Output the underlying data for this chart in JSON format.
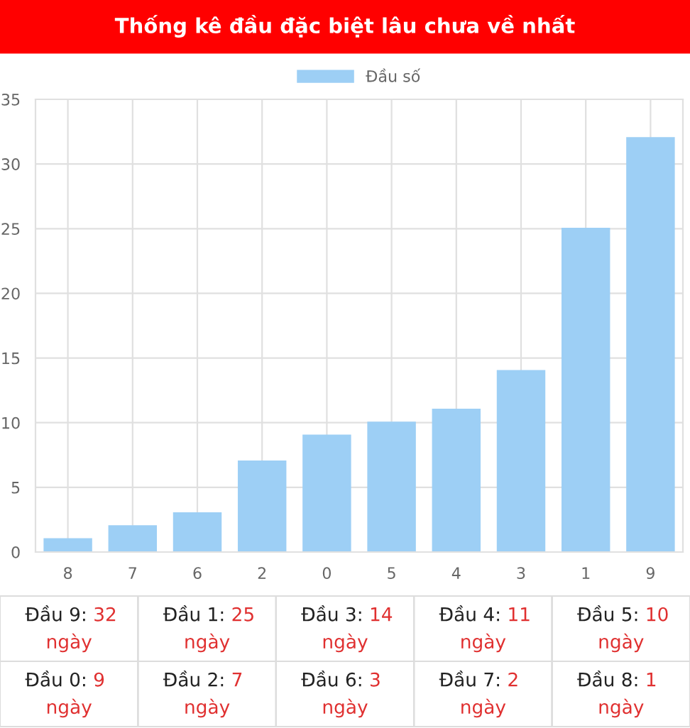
{
  "chart_data": {
    "type": "bar",
    "title": "Thống kê đầu đặc biệt lâu chưa về nhất",
    "categories": [
      "8",
      "7",
      "6",
      "2",
      "0",
      "5",
      "4",
      "3",
      "1",
      "9"
    ],
    "series": [
      {
        "name": "Đầu số",
        "color": "#9dcff5",
        "values": [
          1,
          2,
          3,
          7,
          9,
          10,
          11,
          14,
          25,
          32
        ]
      }
    ],
    "ylim": [
      0,
      35
    ],
    "yticks": [
      0,
      5,
      10,
      15,
      20,
      25,
      30,
      35
    ],
    "grid": true,
    "legend": "top",
    "annotations": [
      "Đầu 9: 32 ngày",
      "Đầu 1: 25 ngày",
      "Đầu 3: 14 ngày",
      "Đầu 4: 11 ngày",
      "Đầu 5: 10 ngày",
      "Đầu 0: 9 ngày",
      "Đầu 2: 7 ngày",
      "Đầu 6: 3 ngày",
      "Đầu 7: 2 ngày",
      "Đầu 8: 1 ngày"
    ]
  }
}
